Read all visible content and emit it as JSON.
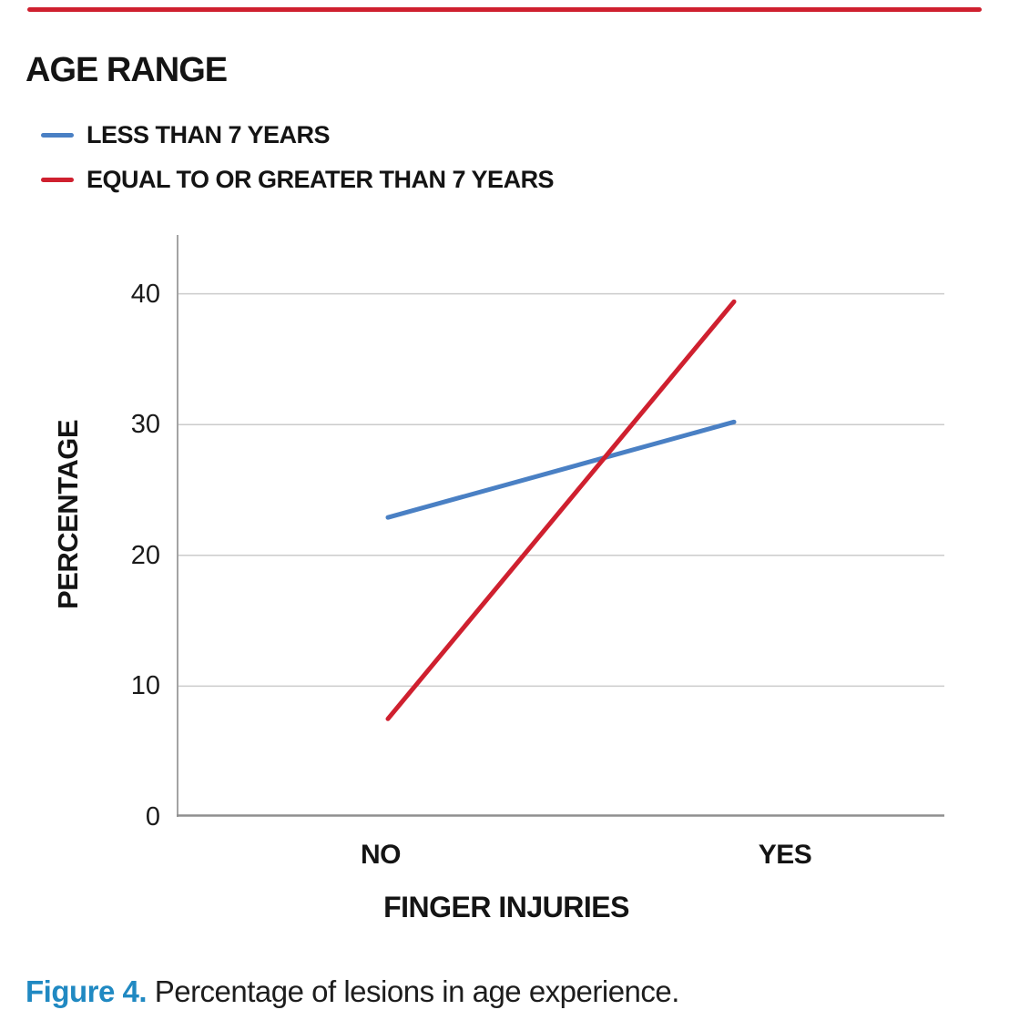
{
  "page": {
    "background": "#ffffff",
    "accent_color": "#cf202f"
  },
  "figure_caption": {
    "label": "Figure 4.",
    "label_color": "#2089c2",
    "text": "Percentage of lesions in age experience."
  },
  "chart_data": {
    "type": "line",
    "legend_title": "AGE RANGE",
    "categories": [
      "NO",
      "YES"
    ],
    "series": [
      {
        "name": "LESS THAN 7 YEARS",
        "color": "#4a80c4",
        "values": [
          22.9,
          30.2
        ]
      },
      {
        "name": "EQUAL TO OR GREATER THAN 7 YEARS",
        "color": "#cf202f",
        "values": [
          7.5,
          39.4
        ]
      }
    ],
    "xlabel": "FINGER INJURIES",
    "ylabel": "PERCENTAGE",
    "ylim": [
      0,
      44.5
    ],
    "yticks": [
      0,
      10,
      20,
      30,
      40
    ],
    "grid": true,
    "legend_position": "top-left",
    "gridline_color": "#cbcbcb",
    "y_axis_color": "#a3a3a3",
    "x_axis_color": "#8f8f8f",
    "text_color": "#1a1a1a"
  }
}
